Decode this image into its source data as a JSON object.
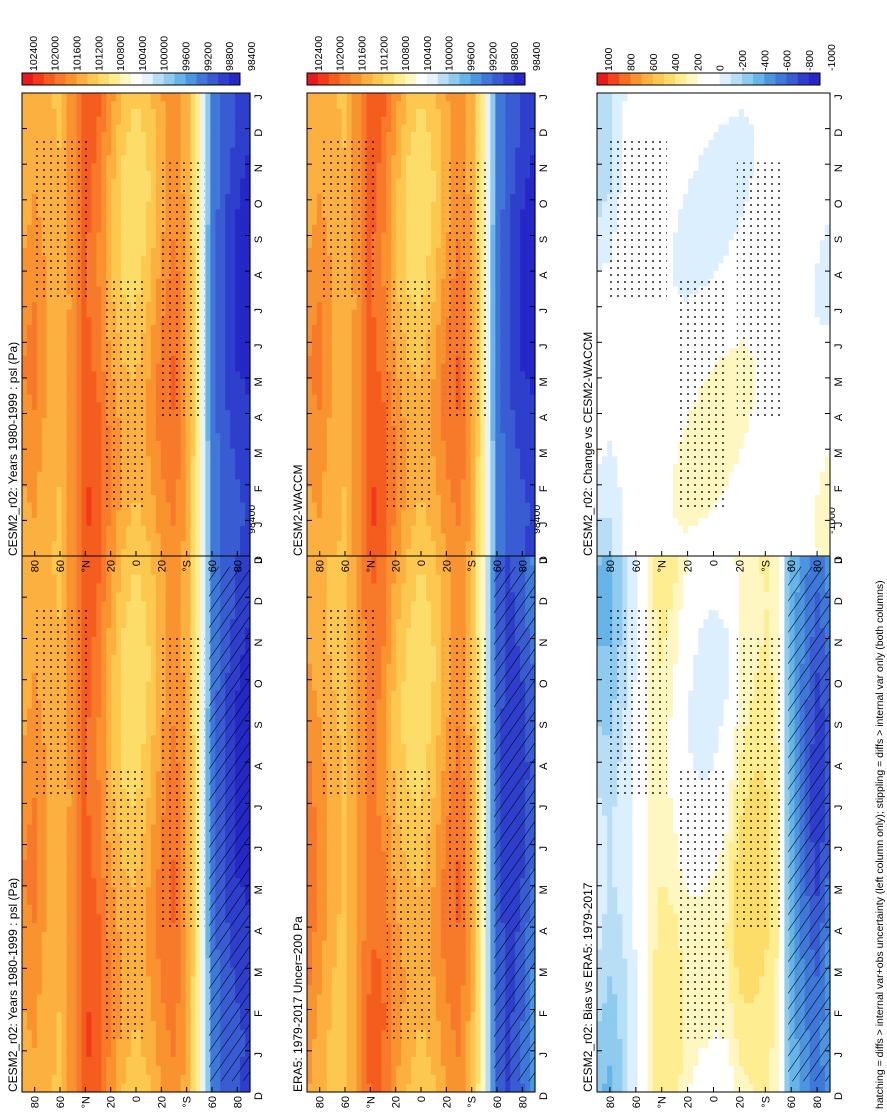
{
  "figure": {
    "footnote": "hatching = diffs > internal var+obs uncertainty (left column only); stippling = diffs > internal var only (both columns)"
  },
  "palettes": {
    "abs": [
      "#e8191d",
      "#f03a1a",
      "#f45d1e",
      "#f7792a",
      "#f9932f",
      "#fbb03f",
      "#fcc84f",
      "#fddd6a",
      "#feee91",
      "#fff7c2",
      "#ffffff",
      "#e6f3fb",
      "#b7def5",
      "#8ecbef",
      "#66b4e8",
      "#4d96df",
      "#3f78d8",
      "#3a5cd2",
      "#2e3fcc",
      "#2527c6"
    ],
    "diff": [
      "#e8191d",
      "#f0461b",
      "#f66e24",
      "#f9932f",
      "#fbb03f",
      "#fcc84f",
      "#fddd6a",
      "#feee91",
      "#fff7c2",
      "#ffffff",
      "#ffffff",
      "#dcefff",
      "#b7def5",
      "#8ecbef",
      "#66b4e8",
      "#4d96df",
      "#3f78d8",
      "#3a5cd2",
      "#2e3fcc",
      "#2527c6"
    ]
  },
  "chart_data": [
    {
      "id": "top-left",
      "type": "heatmap",
      "title": "CESM2_r02: Years 1980-1999 : psl (Pa)",
      "months": [
        "D",
        "J",
        "F",
        "M",
        "A",
        "M",
        "J",
        "J",
        "A",
        "S",
        "O",
        "N",
        "D",
        "J"
      ],
      "lat_ticks": [
        "80",
        "60",
        "°N",
        "20",
        "0",
        "20",
        "°S",
        "60",
        "80"
      ],
      "colorbar": {
        "ticks": [
          "102400",
          "102000",
          "101600",
          "101200",
          "100800",
          "100400",
          "100000",
          "99600",
          "99200",
          "98800",
          "98400"
        ],
        "palette": "abs"
      },
      "value_range": [
        98200,
        102600
      ],
      "latitude": [
        90,
        80,
        70,
        60,
        50,
        40,
        30,
        20,
        10,
        0,
        -10,
        -20,
        -30,
        -40,
        -50,
        -55,
        -60,
        -70,
        -80,
        -90
      ],
      "profile": [
        101500,
        101600,
        101400,
        101300,
        101600,
        102100,
        101900,
        101500,
        101200,
        101100,
        101300,
        101600,
        101800,
        101500,
        100600,
        99800,
        99000,
        98700,
        98500,
        98400
      ],
      "hatching": true
    },
    {
      "id": "top-right",
      "type": "heatmap",
      "title": "CESM2_r02: Years 1980-1999 : psl (Pa)",
      "months": [
        "D",
        "J",
        "F",
        "M",
        "A",
        "M",
        "J",
        "J",
        "A",
        "S",
        "O",
        "N",
        "D",
        "J"
      ],
      "lat_ticks": [
        "80",
        "60",
        "°N",
        "20",
        "0",
        "20",
        "°S",
        "60",
        "80"
      ],
      "colorbar": {
        "ticks": [
          "102400",
          "102000",
          "101600",
          "101200",
          "100800",
          "100400",
          "100000",
          "99600",
          "99200",
          "98800",
          "98400"
        ],
        "palette": "abs"
      },
      "value_range": [
        98200,
        102600
      ],
      "latitude": [
        90,
        80,
        70,
        60,
        50,
        40,
        30,
        20,
        10,
        0,
        -10,
        -20,
        -30,
        -40,
        -50,
        -55,
        -60,
        -70,
        -80,
        -90
      ],
      "profile": [
        101500,
        101600,
        101400,
        101300,
        101600,
        102100,
        101900,
        101500,
        101200,
        101100,
        101300,
        101600,
        101800,
        101500,
        100600,
        99800,
        99000,
        98700,
        98500,
        98400
      ],
      "hatching": false
    },
    {
      "id": "mid-left",
      "type": "heatmap",
      "title": "ERA5: 1979-2017 Uncer=200 Pa",
      "months": [
        "D",
        "J",
        "F",
        "M",
        "A",
        "M",
        "J",
        "J",
        "A",
        "S",
        "O",
        "N",
        "D",
        "J"
      ],
      "lat_ticks": [
        "80",
        "60",
        "°N",
        "20",
        "0",
        "20",
        "°S",
        "60",
        "80"
      ],
      "colorbar": {
        "ticks": [
          "102400",
          "102000",
          "101600",
          "101200",
          "100800",
          "100400",
          "100000",
          "99600",
          "99200",
          "98800",
          "98400"
        ],
        "palette": "abs"
      },
      "value_range": [
        98200,
        102600
      ],
      "latitude": [
        90,
        80,
        70,
        60,
        50,
        40,
        30,
        20,
        10,
        0,
        -10,
        -20,
        -30,
        -40,
        -50,
        -55,
        -60,
        -70,
        -80,
        -90
      ],
      "profile": [
        101700,
        101500,
        101300,
        101200,
        101500,
        101900,
        101800,
        101400,
        101200,
        101100,
        101300,
        101600,
        101800,
        101400,
        100400,
        99500,
        98800,
        98500,
        98700,
        99000
      ],
      "hatching": true
    },
    {
      "id": "mid-right",
      "type": "heatmap",
      "title": "CESM2-WACCM",
      "months": [
        "D",
        "J",
        "F",
        "M",
        "A",
        "M",
        "J",
        "J",
        "A",
        "S",
        "O",
        "N",
        "D",
        "J"
      ],
      "lat_ticks": [
        "80",
        "60",
        "°N",
        "20",
        "0",
        "20",
        "°S",
        "60",
        "80"
      ],
      "colorbar": {
        "ticks": [
          "102400",
          "102000",
          "101600",
          "101200",
          "100800",
          "100400",
          "100000",
          "99600",
          "99200",
          "98800",
          "98400"
        ],
        "palette": "abs"
      },
      "value_range": [
        98200,
        102600
      ],
      "latitude": [
        90,
        80,
        70,
        60,
        50,
        40,
        30,
        20,
        10,
        0,
        -10,
        -20,
        -30,
        -40,
        -50,
        -55,
        -60,
        -70,
        -80,
        -90
      ],
      "profile": [
        101500,
        101600,
        101400,
        101300,
        101600,
        102100,
        101900,
        101500,
        101200,
        101100,
        101300,
        101600,
        101800,
        101500,
        100600,
        99800,
        99000,
        98700,
        98500,
        98400
      ],
      "hatching": false
    },
    {
      "id": "bottom-left",
      "type": "heatmap",
      "title": "CESM2_r02: Bias vs ERA5: 1979-2017",
      "months": [
        "D",
        "J",
        "F",
        "M",
        "A",
        "M",
        "J",
        "J",
        "A",
        "S",
        "O",
        "N",
        "D",
        "J"
      ],
      "lat_ticks": [
        "80",
        "60",
        "°N",
        "20",
        "0",
        "20",
        "°S",
        "60",
        "80"
      ],
      "colorbar": {
        "ticks": [
          "1000",
          "800",
          "600",
          "400",
          "200",
          "0",
          "-200",
          "-400",
          "-600",
          "-800",
          "-1000"
        ],
        "palette": "diff"
      },
      "value_range": [
        -1100,
        1100
      ],
      "latitude": [
        90,
        80,
        70,
        60,
        50,
        40,
        30,
        20,
        10,
        0,
        -10,
        -20,
        -30,
        -40,
        -50,
        -55,
        -60,
        -70,
        -80,
        -90
      ],
      "profile": [
        -300,
        -350,
        -250,
        -100,
        150,
        250,
        180,
        50,
        0,
        0,
        50,
        250,
        300,
        300,
        200,
        -300,
        -500,
        -700,
        -850,
        -700
      ],
      "hatching": true
    },
    {
      "id": "bottom-right",
      "type": "heatmap",
      "title": "CESM2_r02: Change vs CESM2-WACCM",
      "months": [
        "D",
        "J",
        "F",
        "M",
        "A",
        "M",
        "J",
        "J",
        "A",
        "S",
        "O",
        "N",
        "D",
        "J"
      ],
      "lat_ticks": [
        "80",
        "60",
        "°N",
        "20",
        "0",
        "20",
        "°S",
        "60",
        "80"
      ],
      "colorbar": {
        "ticks": [
          "1000",
          "800",
          "600",
          "400",
          "200",
          "0",
          "-200",
          "-400",
          "-600",
          "-800",
          "-1000"
        ],
        "palette": "diff"
      },
      "value_range": [
        -1100,
        1100
      ],
      "latitude": [
        90,
        80,
        70,
        60,
        50,
        40,
        30,
        20,
        10,
        0,
        -10,
        -20,
        -30,
        -40,
        -50,
        -55,
        -60,
        -70,
        -80,
        -90
      ],
      "profile": [
        -150,
        -150,
        -50,
        0,
        0,
        0,
        0,
        0,
        0,
        0,
        0,
        0,
        0,
        0,
        0,
        0,
        0,
        0,
        0,
        0
      ],
      "hatching": false
    }
  ]
}
